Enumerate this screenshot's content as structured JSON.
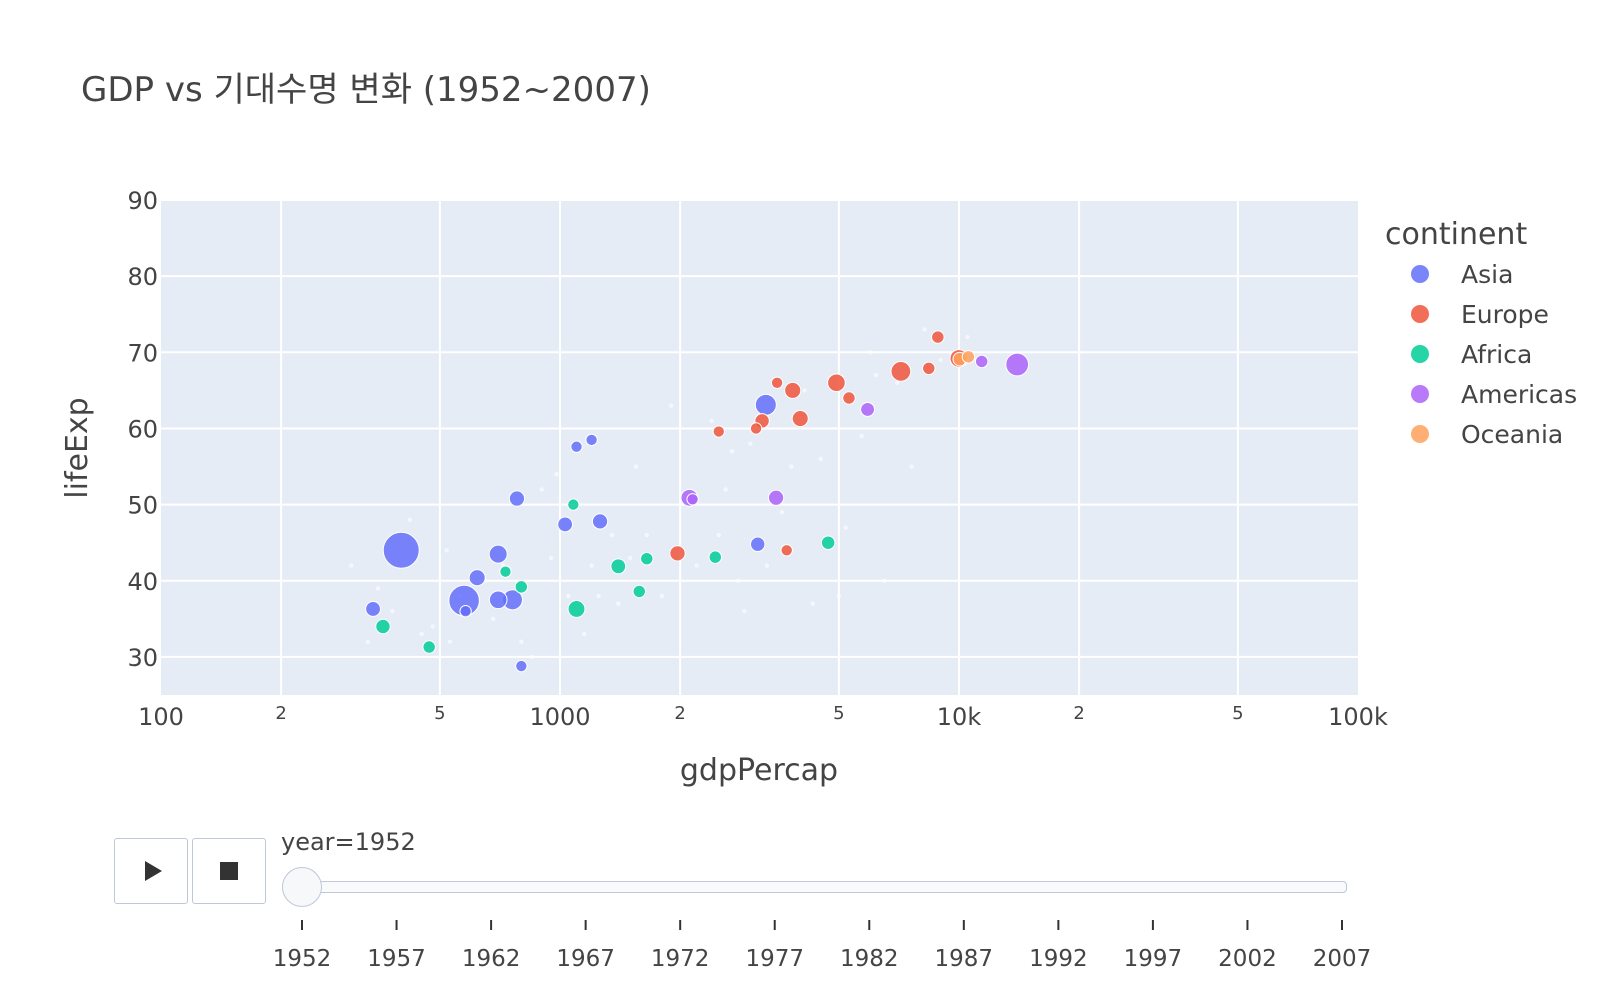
{
  "chart_data": {
    "type": "scatter",
    "title": "GDP vs 기대수명 변화 (1952~2007)",
    "xlabel": "gdpPercap",
    "ylabel": "lifeExp",
    "x_scale": "log",
    "xlim": [
      100,
      100000
    ],
    "ylim": [
      25,
      90
    ],
    "x_ticks": [
      100,
      200,
      500,
      1000,
      2000,
      5000,
      10000,
      20000,
      50000,
      100000
    ],
    "x_tick_labels": [
      "100",
      "2",
      "5",
      "1000",
      "2",
      "5",
      "10k",
      "2",
      "5",
      "100k"
    ],
    "y_ticks": [
      30,
      40,
      50,
      60,
      70,
      80,
      90
    ],
    "y_tick_labels": [
      "30",
      "40",
      "50",
      "60",
      "70",
      "80",
      "90"
    ],
    "grid": true,
    "plot_background": "#e5ecf6",
    "legend": {
      "title": "continent",
      "placement": "right"
    },
    "series": [
      {
        "name": "Asia",
        "color": "#636efa",
        "points": [
          {
            "x": 400,
            "y": 44.0,
            "size": 1.0
          },
          {
            "x": 575,
            "y": 37.4,
            "size": 0.72
          },
          {
            "x": 3280,
            "y": 63.1,
            "size": 0.34
          },
          {
            "x": 700,
            "y": 43.5,
            "size": 0.25
          },
          {
            "x": 760,
            "y": 37.5,
            "size": 0.31
          },
          {
            "x": 700,
            "y": 37.5,
            "size": 0.24
          },
          {
            "x": 620,
            "y": 40.4,
            "size": 0.2
          },
          {
            "x": 780,
            "y": 50.8,
            "size": 0.18
          },
          {
            "x": 1260,
            "y": 47.8,
            "size": 0.18
          },
          {
            "x": 1030,
            "y": 47.4,
            "size": 0.17
          },
          {
            "x": 340,
            "y": 36.3,
            "size": 0.17
          },
          {
            "x": 3130,
            "y": 44.8,
            "size": 0.16
          },
          {
            "x": 1100,
            "y": 57.6,
            "size": 0.1
          },
          {
            "x": 1200,
            "y": 58.5,
            "size": 0.1
          },
          {
            "x": 580,
            "y": 36.0,
            "size": 0.1
          },
          {
            "x": 800,
            "y": 28.8,
            "size": 0.1
          }
        ]
      },
      {
        "name": "Europe",
        "color": "#ef553b",
        "points": [
          {
            "x": 7150,
            "y": 67.5,
            "size": 0.3
          },
          {
            "x": 4930,
            "y": 66.0,
            "size": 0.24
          },
          {
            "x": 9990,
            "y": 69.2,
            "size": 0.24
          },
          {
            "x": 3830,
            "y": 65.0,
            "size": 0.2
          },
          {
            "x": 4000,
            "y": 61.3,
            "size": 0.2
          },
          {
            "x": 3210,
            "y": 61.0,
            "size": 0.16
          },
          {
            "x": 1970,
            "y": 43.6,
            "size": 0.18
          },
          {
            "x": 8850,
            "y": 72.0,
            "size": 0.12
          },
          {
            "x": 8400,
            "y": 67.9,
            "size": 0.12
          },
          {
            "x": 5300,
            "y": 64.0,
            "size": 0.12
          },
          {
            "x": 2500,
            "y": 59.6,
            "size": 0.1
          },
          {
            "x": 3100,
            "y": 60.0,
            "size": 0.1
          },
          {
            "x": 3500,
            "y": 66.0,
            "size": 0.1
          },
          {
            "x": 3700,
            "y": 44.0,
            "size": 0.1
          }
        ]
      },
      {
        "name": "Africa",
        "color": "#00cc96",
        "points": [
          {
            "x": 1100,
            "y": 36.3,
            "size": 0.22
          },
          {
            "x": 1400,
            "y": 41.9,
            "size": 0.17
          },
          {
            "x": 360,
            "y": 34.0,
            "size": 0.16
          },
          {
            "x": 4700,
            "y": 45.0,
            "size": 0.14
          },
          {
            "x": 2450,
            "y": 43.1,
            "size": 0.12
          },
          {
            "x": 800,
            "y": 39.2,
            "size": 0.12
          },
          {
            "x": 1650,
            "y": 42.9,
            "size": 0.12
          },
          {
            "x": 1580,
            "y": 38.6,
            "size": 0.12
          },
          {
            "x": 470,
            "y": 31.3,
            "size": 0.12
          },
          {
            "x": 730,
            "y": 41.2,
            "size": 0.1
          },
          {
            "x": 1080,
            "y": 50.0,
            "size": 0.1
          }
        ]
      },
      {
        "name": "Americas",
        "color": "#ab63fa",
        "points": [
          {
            "x": 13990,
            "y": 68.4,
            "size": 0.4
          },
          {
            "x": 2110,
            "y": 50.9,
            "size": 0.22
          },
          {
            "x": 3480,
            "y": 50.9,
            "size": 0.18
          },
          {
            "x": 5900,
            "y": 62.5,
            "size": 0.15
          },
          {
            "x": 11400,
            "y": 68.8,
            "size": 0.12
          },
          {
            "x": 2150,
            "y": 50.7,
            "size": 0.1
          }
        ]
      },
      {
        "name": "Oceania",
        "color": "#ffa15a",
        "points": [
          {
            "x": 10040,
            "y": 69.1,
            "size": 0.14
          },
          {
            "x": 10560,
            "y": 69.4,
            "size": 0.12
          }
        ]
      }
    ],
    "faded_points": [
      [
        300,
        42
      ],
      [
        330,
        32
      ],
      [
        350,
        39
      ],
      [
        380,
        36
      ],
      [
        420,
        48
      ],
      [
        450,
        33
      ],
      [
        480,
        34
      ],
      [
        520,
        44
      ],
      [
        530,
        32
      ],
      [
        560,
        38
      ],
      [
        650,
        40
      ],
      [
        680,
        35
      ],
      [
        720,
        42
      ],
      [
        800,
        32
      ],
      [
        850,
        30
      ],
      [
        900,
        52
      ],
      [
        950,
        43
      ],
      [
        980,
        54
      ],
      [
        1050,
        38
      ],
      [
        1150,
        33
      ],
      [
        1200,
        42
      ],
      [
        1250,
        38
      ],
      [
        1350,
        46
      ],
      [
        1400,
        37
      ],
      [
        1500,
        43
      ],
      [
        1550,
        55
      ],
      [
        1650,
        46
      ],
      [
        1800,
        38
      ],
      [
        1900,
        63
      ],
      [
        2000,
        43
      ],
      [
        2200,
        42
      ],
      [
        2400,
        61
      ],
      [
        2600,
        52
      ],
      [
        2700,
        57
      ],
      [
        2800,
        40
      ],
      [
        2900,
        36
      ],
      [
        3000,
        58
      ],
      [
        3300,
        42
      ],
      [
        3600,
        49
      ],
      [
        3800,
        55
      ],
      [
        4100,
        65
      ],
      [
        4300,
        37
      ],
      [
        4500,
        56
      ],
      [
        5200,
        47
      ],
      [
        5700,
        59
      ],
      [
        6000,
        70
      ],
      [
        6500,
        40
      ],
      [
        7000,
        66
      ],
      [
        7600,
        55
      ],
      [
        8200,
        73
      ],
      [
        9000,
        69
      ],
      [
        10500,
        72
      ],
      [
        6200,
        67
      ],
      [
        5000,
        38
      ],
      [
        2500,
        46
      ]
    ]
  },
  "slider": {
    "current_label": "year=1952",
    "selected_index": 0,
    "steps": [
      "1952",
      "1957",
      "1962",
      "1967",
      "1972",
      "1977",
      "1982",
      "1987",
      "1992",
      "1997",
      "2002",
      "2007"
    ]
  },
  "controls": {
    "play_icon": "play-icon",
    "stop_icon": "stop-icon"
  }
}
